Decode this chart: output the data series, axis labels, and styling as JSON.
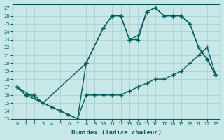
{
  "xlabel": "Humidex (Indice chaleur)",
  "bg_color": "#c8e8e8",
  "grid_color": "#b0d0d0",
  "line_color": "#006060",
  "marker": "+",
  "markersize": 4,
  "linewidth": 1.0,
  "xlim": [
    -0.5,
    23.5
  ],
  "ylim": [
    13,
    27.5
  ],
  "xticks": [
    0,
    1,
    2,
    3,
    4,
    5,
    6,
    7,
    8,
    9,
    10,
    11,
    12,
    13,
    14,
    15,
    16,
    17,
    18,
    19,
    20,
    21,
    22,
    23
  ],
  "yticks": [
    13,
    14,
    15,
    16,
    17,
    18,
    19,
    20,
    21,
    22,
    23,
    24,
    25,
    26,
    27
  ],
  "series1_x": [
    0,
    1,
    2,
    3,
    4,
    5,
    6,
    7,
    8,
    9,
    10,
    11,
    12,
    13,
    14,
    15,
    16,
    17,
    18,
    19,
    20,
    21,
    22,
    23
  ],
  "series1_y": [
    17,
    16,
    16,
    15,
    14.5,
    14,
    13.5,
    13,
    16,
    16,
    16,
    16,
    16,
    16.5,
    17,
    17.5,
    18,
    18,
    18.5,
    19,
    20,
    21,
    22,
    18.5
  ],
  "series2_x": [
    0,
    1,
    3,
    4,
    5,
    6,
    7,
    8,
    10,
    11,
    12,
    13,
    14,
    15,
    16,
    17,
    18,
    19,
    20,
    21,
    22,
    23
  ],
  "series2_y": [
    17,
    16,
    15,
    14.5,
    14,
    13.5,
    13,
    20,
    24.5,
    26,
    26,
    23,
    23,
    26.5,
    27,
    26,
    26,
    26,
    25,
    22,
    20.5,
    18.5
  ],
  "series3_x": [
    0,
    3,
    8,
    10,
    11,
    12,
    13,
    14,
    15,
    16,
    17,
    18,
    19,
    20,
    21,
    22,
    23
  ],
  "series3_y": [
    17,
    15,
    20,
    24.5,
    26,
    26,
    23,
    23.5,
    26.5,
    27,
    26,
    26,
    26,
    25,
    22,
    20.5,
    18.5
  ]
}
